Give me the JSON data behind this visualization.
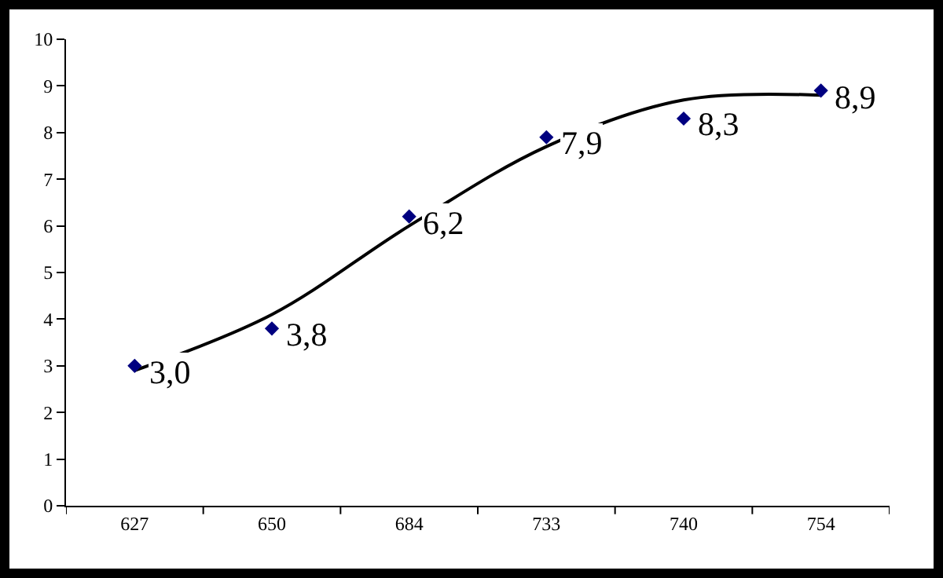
{
  "chart_data": {
    "type": "scatter",
    "categories": [
      "627",
      "650",
      "684",
      "733",
      "740",
      "754"
    ],
    "series": [
      {
        "color": "#000080",
        "marker": "diamond",
        "values": [
          3.0,
          3.8,
          6.2,
          7.9,
          8.3,
          8.9
        ],
        "value_labels": [
          "3,0",
          "3,8",
          "6,2",
          "7,9",
          "8,3",
          "8,9"
        ]
      },
      {
        "type": "line",
        "color": "#000000",
        "values": [
          2.9,
          4.1,
          6.0,
          7.7,
          8.7,
          8.8
        ]
      }
    ],
    "ylim": [
      0,
      10
    ],
    "yticks": [
      0,
      1,
      2,
      3,
      4,
      5,
      6,
      7,
      8,
      9,
      10
    ],
    "grid": false
  }
}
